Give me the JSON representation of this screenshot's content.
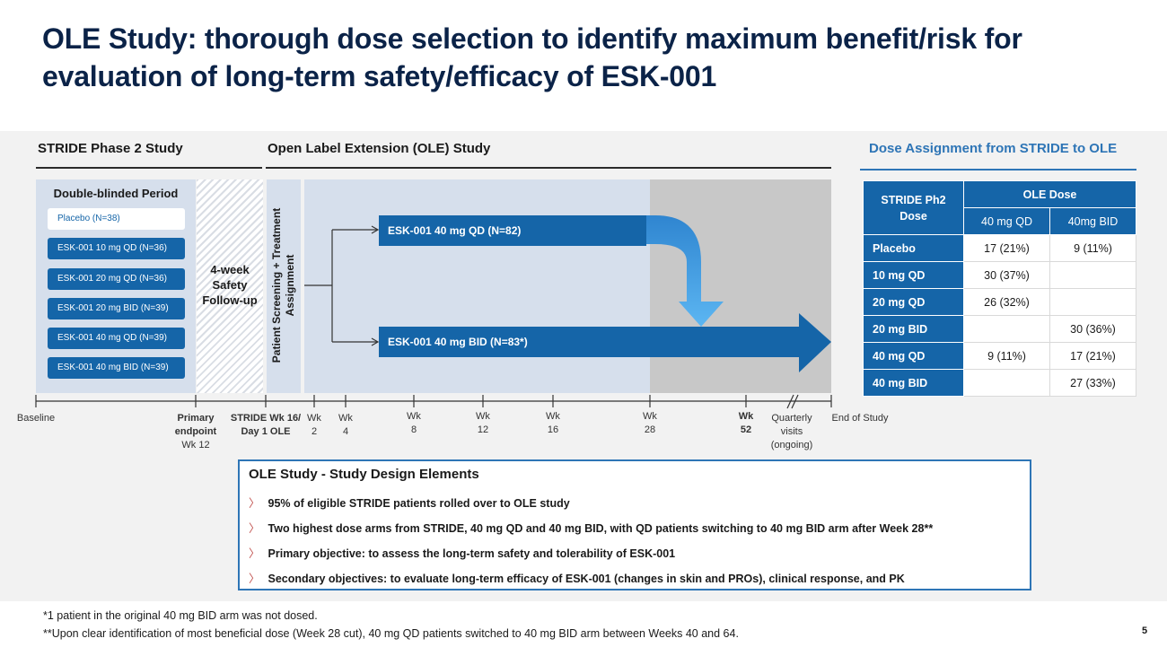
{
  "title": "OLE Study: thorough dose selection to identify maximum benefit/risk for evaluation of long-term safety/efficacy of ESK-001",
  "sections": {
    "stride": "STRIDE Phase 2 Study",
    "ole": "Open Label Extension (OLE) Study",
    "dose_assignment": "Dose Assignment from STRIDE to OLE"
  },
  "double_blind": {
    "title": "Double-blinded Period",
    "arms": [
      "Placebo (N=38)",
      "ESK-001 10 mg QD (N=36)",
      "ESK-001 20 mg QD (N=36)",
      "ESK-001 20 mg BID (N=39)",
      "ESK-001 40 mg QD (N=39)",
      "ESK-001 40 mg BID (N=39)"
    ]
  },
  "safety_followup": "4-week Safety Follow-up",
  "screening": "Patient Screening + Treatment Assignment",
  "ole_arms": {
    "qd": "ESK-001 40 mg QD (N=82)",
    "bid": "ESK-001 40 mg BID (N=83*)"
  },
  "timeline": {
    "baseline": "Baseline",
    "primary": [
      "Primary",
      "endpoint",
      "Wk 12"
    ],
    "stride_day1": [
      "STRIDE Wk 16/",
      "Day 1 OLE"
    ],
    "wk2": [
      "Wk",
      "2"
    ],
    "wk4": [
      "Wk",
      "4"
    ],
    "wk8": [
      "Wk",
      "8"
    ],
    "wk12": [
      "Wk",
      "12"
    ],
    "wk16": [
      "Wk",
      "16"
    ],
    "wk28": [
      "Wk",
      "28"
    ],
    "wk52": [
      "Wk",
      "52"
    ],
    "quarterly": [
      "Quarterly",
      "visits",
      "(ongoing)"
    ],
    "end": "End of Study"
  },
  "dose_table": {
    "header_left": [
      "STRIDE Ph2",
      "Dose"
    ],
    "header_group": "OLE Dose",
    "col1": "40 mg QD",
    "col2": "40mg BID",
    "rows": [
      {
        "label": "Placebo",
        "qd": "17 (21%)",
        "bid": "9 (11%)"
      },
      {
        "label": "10 mg QD",
        "qd": "30 (37%)",
        "bid": ""
      },
      {
        "label": "20 mg QD",
        "qd": "26 (32%)",
        "bid": ""
      },
      {
        "label": "20 mg BID",
        "qd": "",
        "bid": "30 (36%)"
      },
      {
        "label": "40 mg QD",
        "qd": "9 (11%)",
        "bid": "17 (21%)"
      },
      {
        "label": "40 mg BID",
        "qd": "",
        "bid": "27 (33%)"
      }
    ]
  },
  "design": {
    "title": "OLE Study - Study Design Elements",
    "bullets": [
      "95% of eligible STRIDE patients rolled over to OLE study",
      "Two highest dose arms from STRIDE, 40 mg QD and 40 mg BID, with QD patients switching to 40 mg BID arm after Week 28**",
      "Primary objective: to assess the long-term safety and tolerability of ESK-001",
      "Secondary objectives: to evaluate long-term efficacy of ESK-001 (changes in skin and PROs), clinical response, and PK"
    ]
  },
  "footnotes": [
    "*1 patient in the original 40 mg BID arm was not dosed.",
    "**Upon clear identification of most beneficial dose (Week 28 cut), 40 mg QD patients switched to 40 mg BID arm between Weeks 40 and 64."
  ],
  "page_number": "5"
}
